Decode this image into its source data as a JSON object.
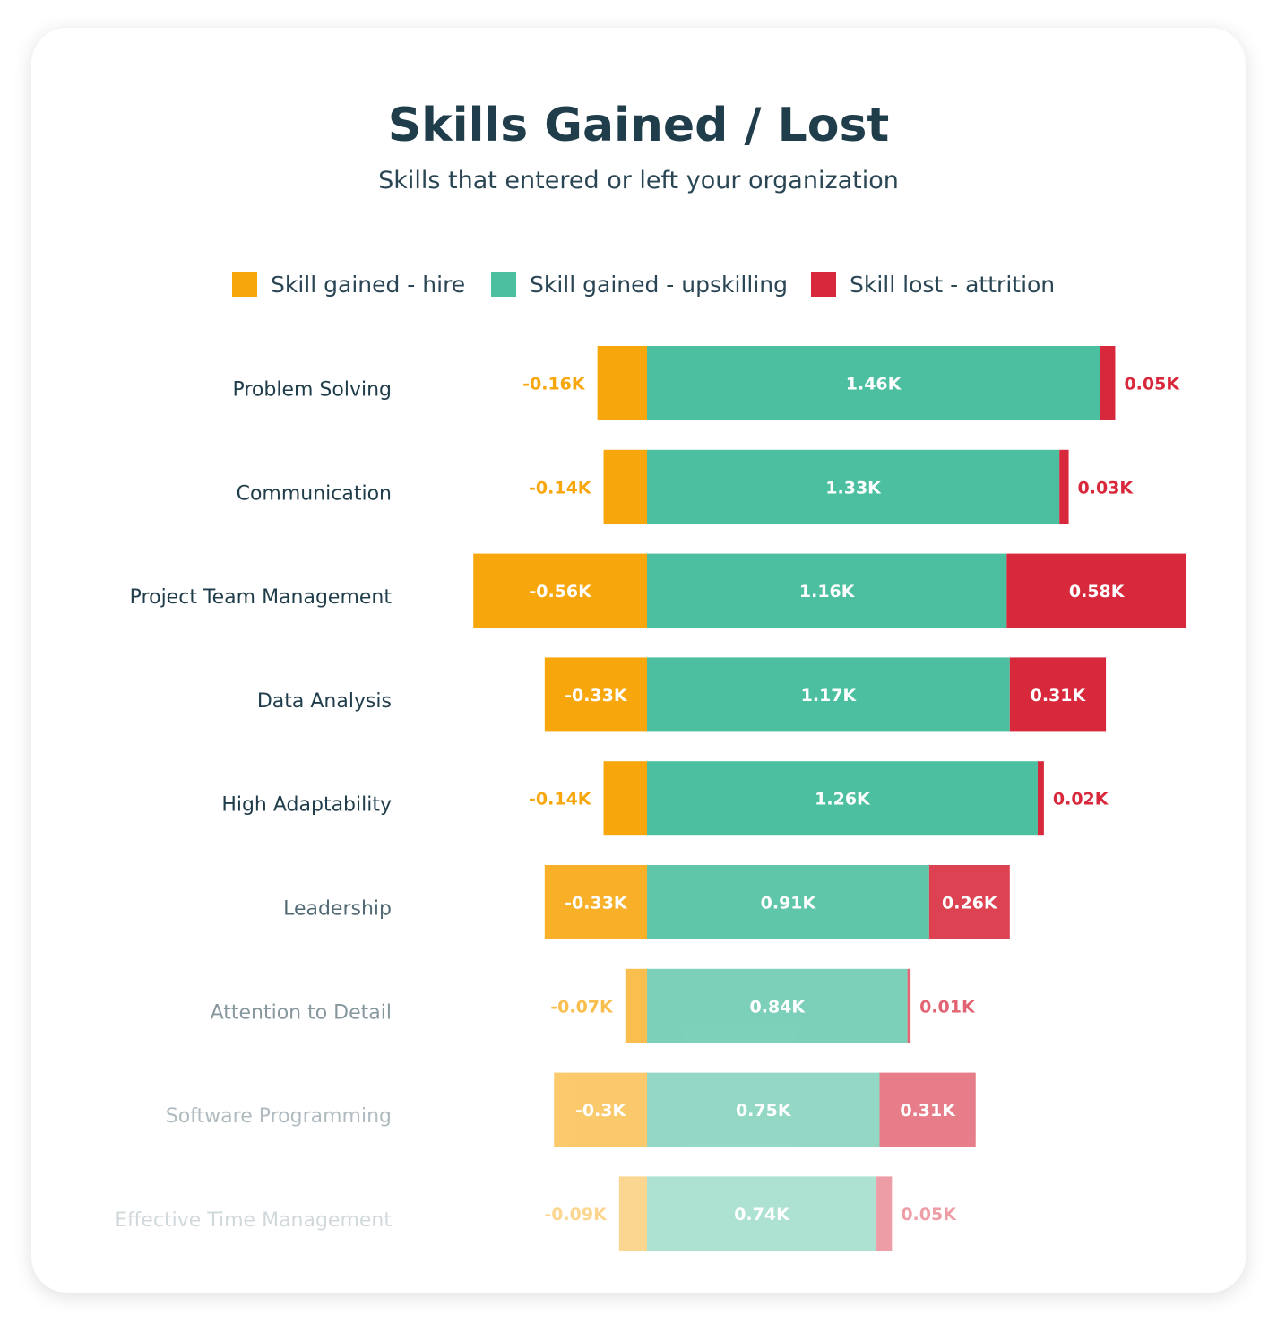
{
  "chart_data": {
    "type": "bar",
    "orientation": "horizontal",
    "stacked": true,
    "title": "Skills Gained / Lost",
    "subtitle": "Skills that entered or left your organization",
    "xlabel": "",
    "ylabel": "",
    "grid": false,
    "legend_position": "top",
    "categories": [
      "Problem Solving",
      "Communication",
      "Project Team Management",
      "Data Analysis",
      "High Adaptability",
      "Leadership",
      "Attention to Detail",
      "Software Programming",
      "Effective Time Management"
    ],
    "series": [
      {
        "name": "Skill gained - hire",
        "color": "#f7a60b",
        "values": [
          -0.16,
          -0.14,
          -0.56,
          -0.33,
          -0.14,
          -0.33,
          -0.07,
          -0.3,
          -0.09
        ],
        "labels": [
          "-0.16K",
          "-0.14K",
          "-0.56K",
          "-0.33K",
          "-0.14K",
          "-0.33K",
          "-0.07K",
          "-0.3K",
          "-0.09K"
        ]
      },
      {
        "name": "Skill gained - upskilling",
        "color": "#4bbf9f",
        "values": [
          1.46,
          1.33,
          1.16,
          1.17,
          1.26,
          0.91,
          0.84,
          0.75,
          0.74
        ],
        "labels": [
          "1.46K",
          "1.33K",
          "1.16K",
          "1.17K",
          "1.26K",
          "0.91K",
          "0.84K",
          "0.75K",
          "0.74K"
        ]
      },
      {
        "name": "Skill lost - attrition",
        "color": "#d8283b",
        "values": [
          0.05,
          0.03,
          0.58,
          0.31,
          0.02,
          0.26,
          0.01,
          0.31,
          0.05
        ],
        "labels": [
          "0.05K",
          "0.03K",
          "0.58K",
          "0.31K",
          "0.02K",
          "0.26K",
          "0.01K",
          "0.31K",
          "0.05K"
        ]
      }
    ]
  }
}
